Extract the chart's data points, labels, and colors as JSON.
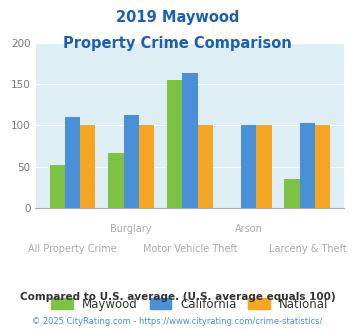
{
  "title_line1": "2019 Maywood",
  "title_line2": "Property Crime Comparison",
  "categories": [
    "All Property Crime",
    "Burglary",
    "Motor Vehicle Theft",
    "Arson",
    "Larceny & Theft"
  ],
  "top_labels": [
    "",
    "Burglary",
    "",
    "Arson",
    ""
  ],
  "bot_labels": [
    "All Property Crime",
    "",
    "Motor Vehicle Theft",
    "",
    "Larceny & Theft"
  ],
  "maywood": [
    52,
    67,
    155,
    0,
    35
  ],
  "california": [
    110,
    113,
    163,
    100,
    103
  ],
  "national": [
    100,
    100,
    100,
    100,
    100
  ],
  "color_maywood": "#7dc242",
  "color_california": "#4a90d9",
  "color_national": "#f5a623",
  "ylim": [
    0,
    200
  ],
  "yticks": [
    0,
    50,
    100,
    150,
    200
  ],
  "bg_color": "#ddeef5",
  "title_color": "#1a5fb4",
  "xlabel_color": "#aaaaaa",
  "footnote1": "Compared to U.S. average. (U.S. average equals 100)",
  "footnote2": "© 2025 CityRating.com - https://www.cityrating.com/crime-statistics/",
  "footnote1_color": "#333333",
  "footnote2_color": "#4a90d9"
}
